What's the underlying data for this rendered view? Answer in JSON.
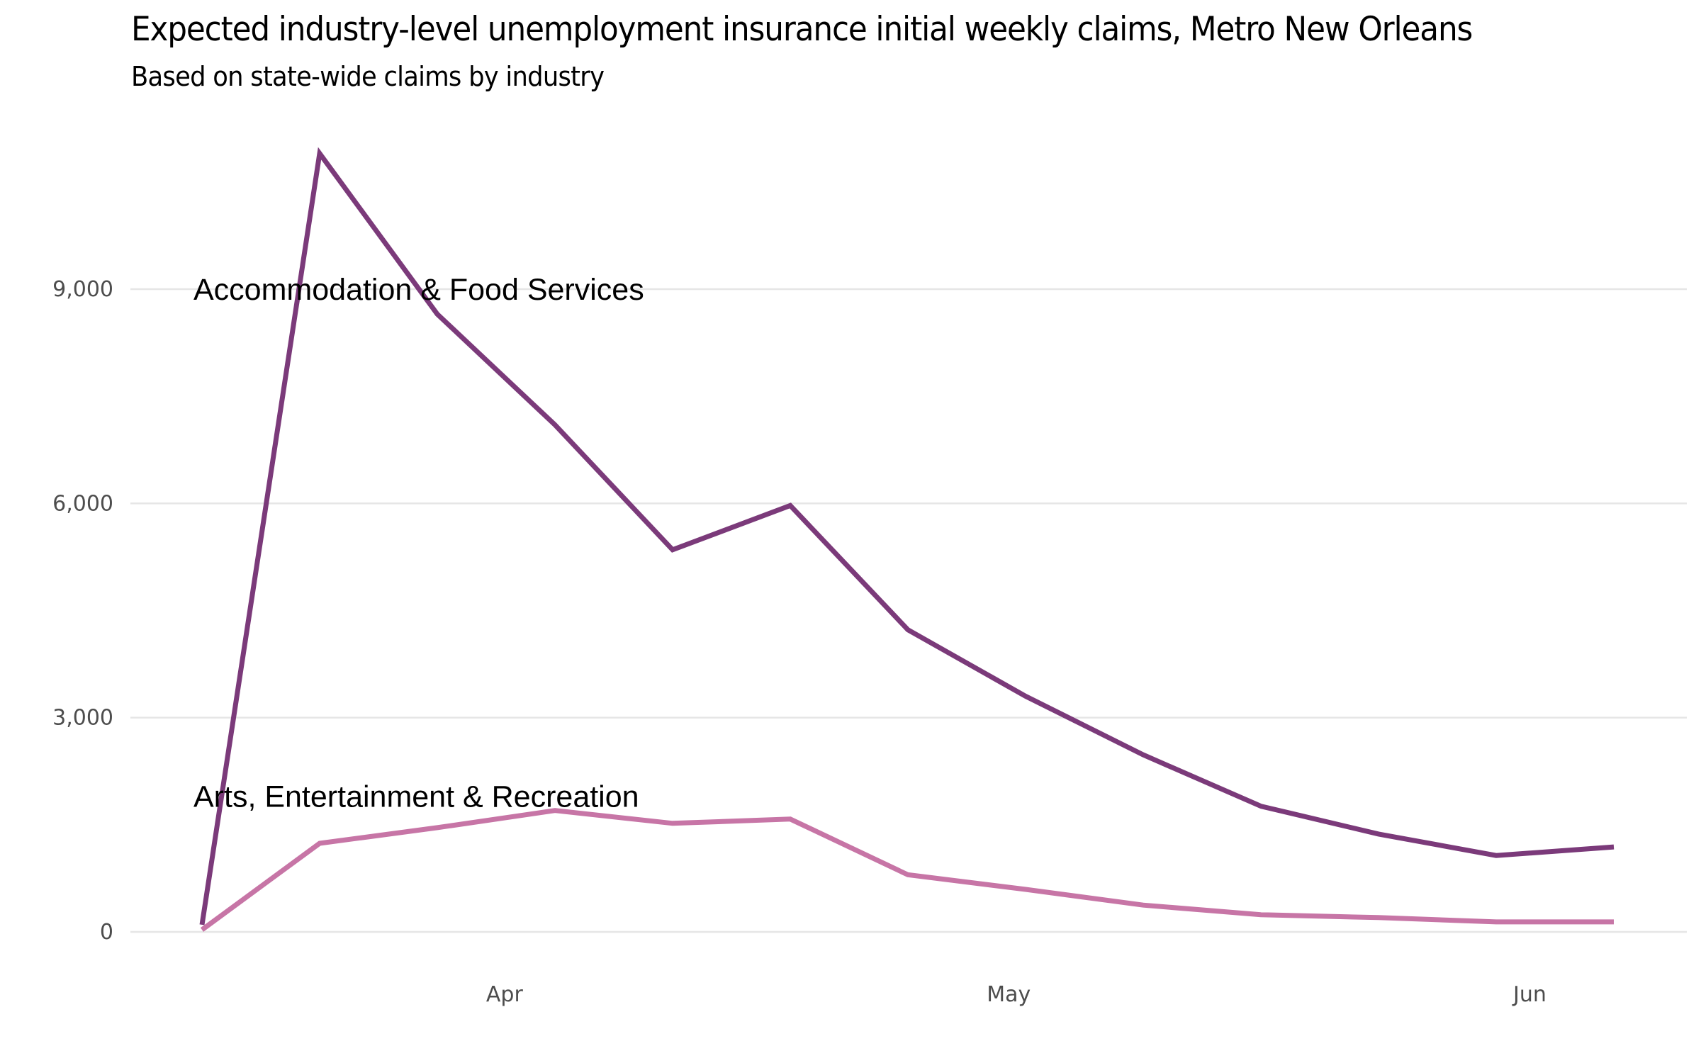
{
  "header": {
    "title": "Expected industry-level unemployment insurance initial weekly claims, Metro New Orleans",
    "subtitle": "Based on state-wide claims by industry"
  },
  "chart_data": {
    "type": "line",
    "title": "Expected industry-level unemployment insurance initial weekly claims, Metro New Orleans",
    "subtitle": "Based on state-wide claims by industry",
    "xlabel": "",
    "ylabel": "",
    "x": [
      "2020-03-14",
      "2020-03-21",
      "2020-03-28",
      "2020-04-04",
      "2020-04-11",
      "2020-04-18",
      "2020-04-25",
      "2020-05-02",
      "2020-05-09",
      "2020-05-16",
      "2020-05-23",
      "2020-05-30",
      "2020-06-06"
    ],
    "x_range": [
      "2020-03-07",
      "2020-06-12"
    ],
    "x_ticks": [
      {
        "date": "2020-04-01",
        "label": "Apr"
      },
      {
        "date": "2020-05-01",
        "label": "May"
      },
      {
        "date": "2020-06-01",
        "label": "Jun"
      }
    ],
    "ylim": [
      -700,
      11200
    ],
    "y_ticks": [
      {
        "value": 0,
        "label": "0"
      },
      {
        "value": 3000,
        "label": "3,000"
      },
      {
        "value": 6000,
        "label": "6,000"
      },
      {
        "value": 9000,
        "label": "9,000"
      }
    ],
    "grid": true,
    "legend": "direct-labels",
    "series": [
      {
        "name": "Accommodation & Food Services",
        "color": "#7b3a7a",
        "label_anchor": {
          "date": "2020-03-14",
          "value": 9000
        },
        "values": [
          100,
          10900,
          8650,
          7100,
          5350,
          5970,
          4230,
          3300,
          2480,
          1760,
          1370,
          1070,
          1190
        ]
      },
      {
        "name": "Arts, Entertainment & Recreation",
        "color": "#c775a6",
        "label_anchor": {
          "date": "2020-03-14",
          "value": 1900
        },
        "values": [
          30,
          1240,
          1460,
          1700,
          1520,
          1580,
          800,
          595,
          375,
          240,
          200,
          140,
          140
        ]
      }
    ]
  }
}
